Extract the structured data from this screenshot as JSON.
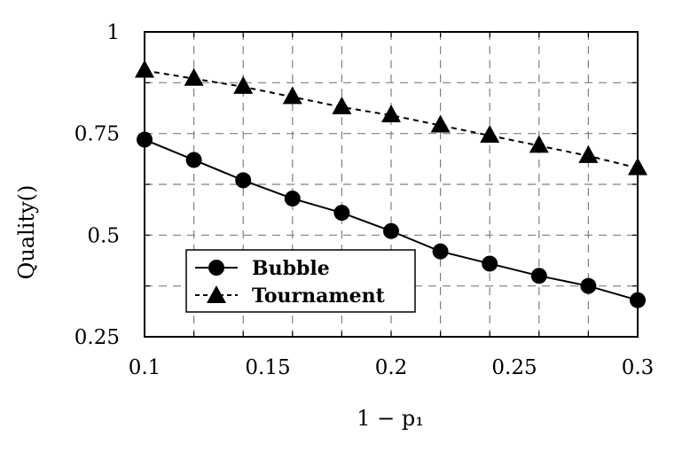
{
  "chart_data": {
    "type": "line",
    "title": "",
    "xlabel": "1 − p₁",
    "ylabel": "Quality()",
    "xlim": [
      0.1,
      0.3
    ],
    "ylim": [
      0.25,
      1
    ],
    "x": [
      0.1,
      0.12,
      0.14,
      0.16,
      0.18,
      0.2,
      0.22,
      0.24,
      0.26,
      0.28,
      0.3
    ],
    "xticks": [
      "0.1",
      "0.15",
      "0.2",
      "0.25",
      "0.3"
    ],
    "yticks": [
      "0.25",
      "0.5",
      "0.75",
      "1"
    ],
    "grid": true,
    "legend_position": "bottom-left",
    "series": [
      {
        "name": "Bubble",
        "marker": "circle",
        "line": "solid",
        "color": "#000000",
        "values": [
          0.735,
          0.685,
          0.635,
          0.59,
          0.555,
          0.51,
          0.46,
          0.43,
          0.4,
          0.375,
          0.34
        ]
      },
      {
        "name": "Tournament",
        "marker": "triangle",
        "line": "dashed",
        "color": "#000000",
        "values": [
          0.905,
          0.885,
          0.865,
          0.84,
          0.815,
          0.795,
          0.77,
          0.745,
          0.72,
          0.695,
          0.665
        ]
      }
    ]
  }
}
